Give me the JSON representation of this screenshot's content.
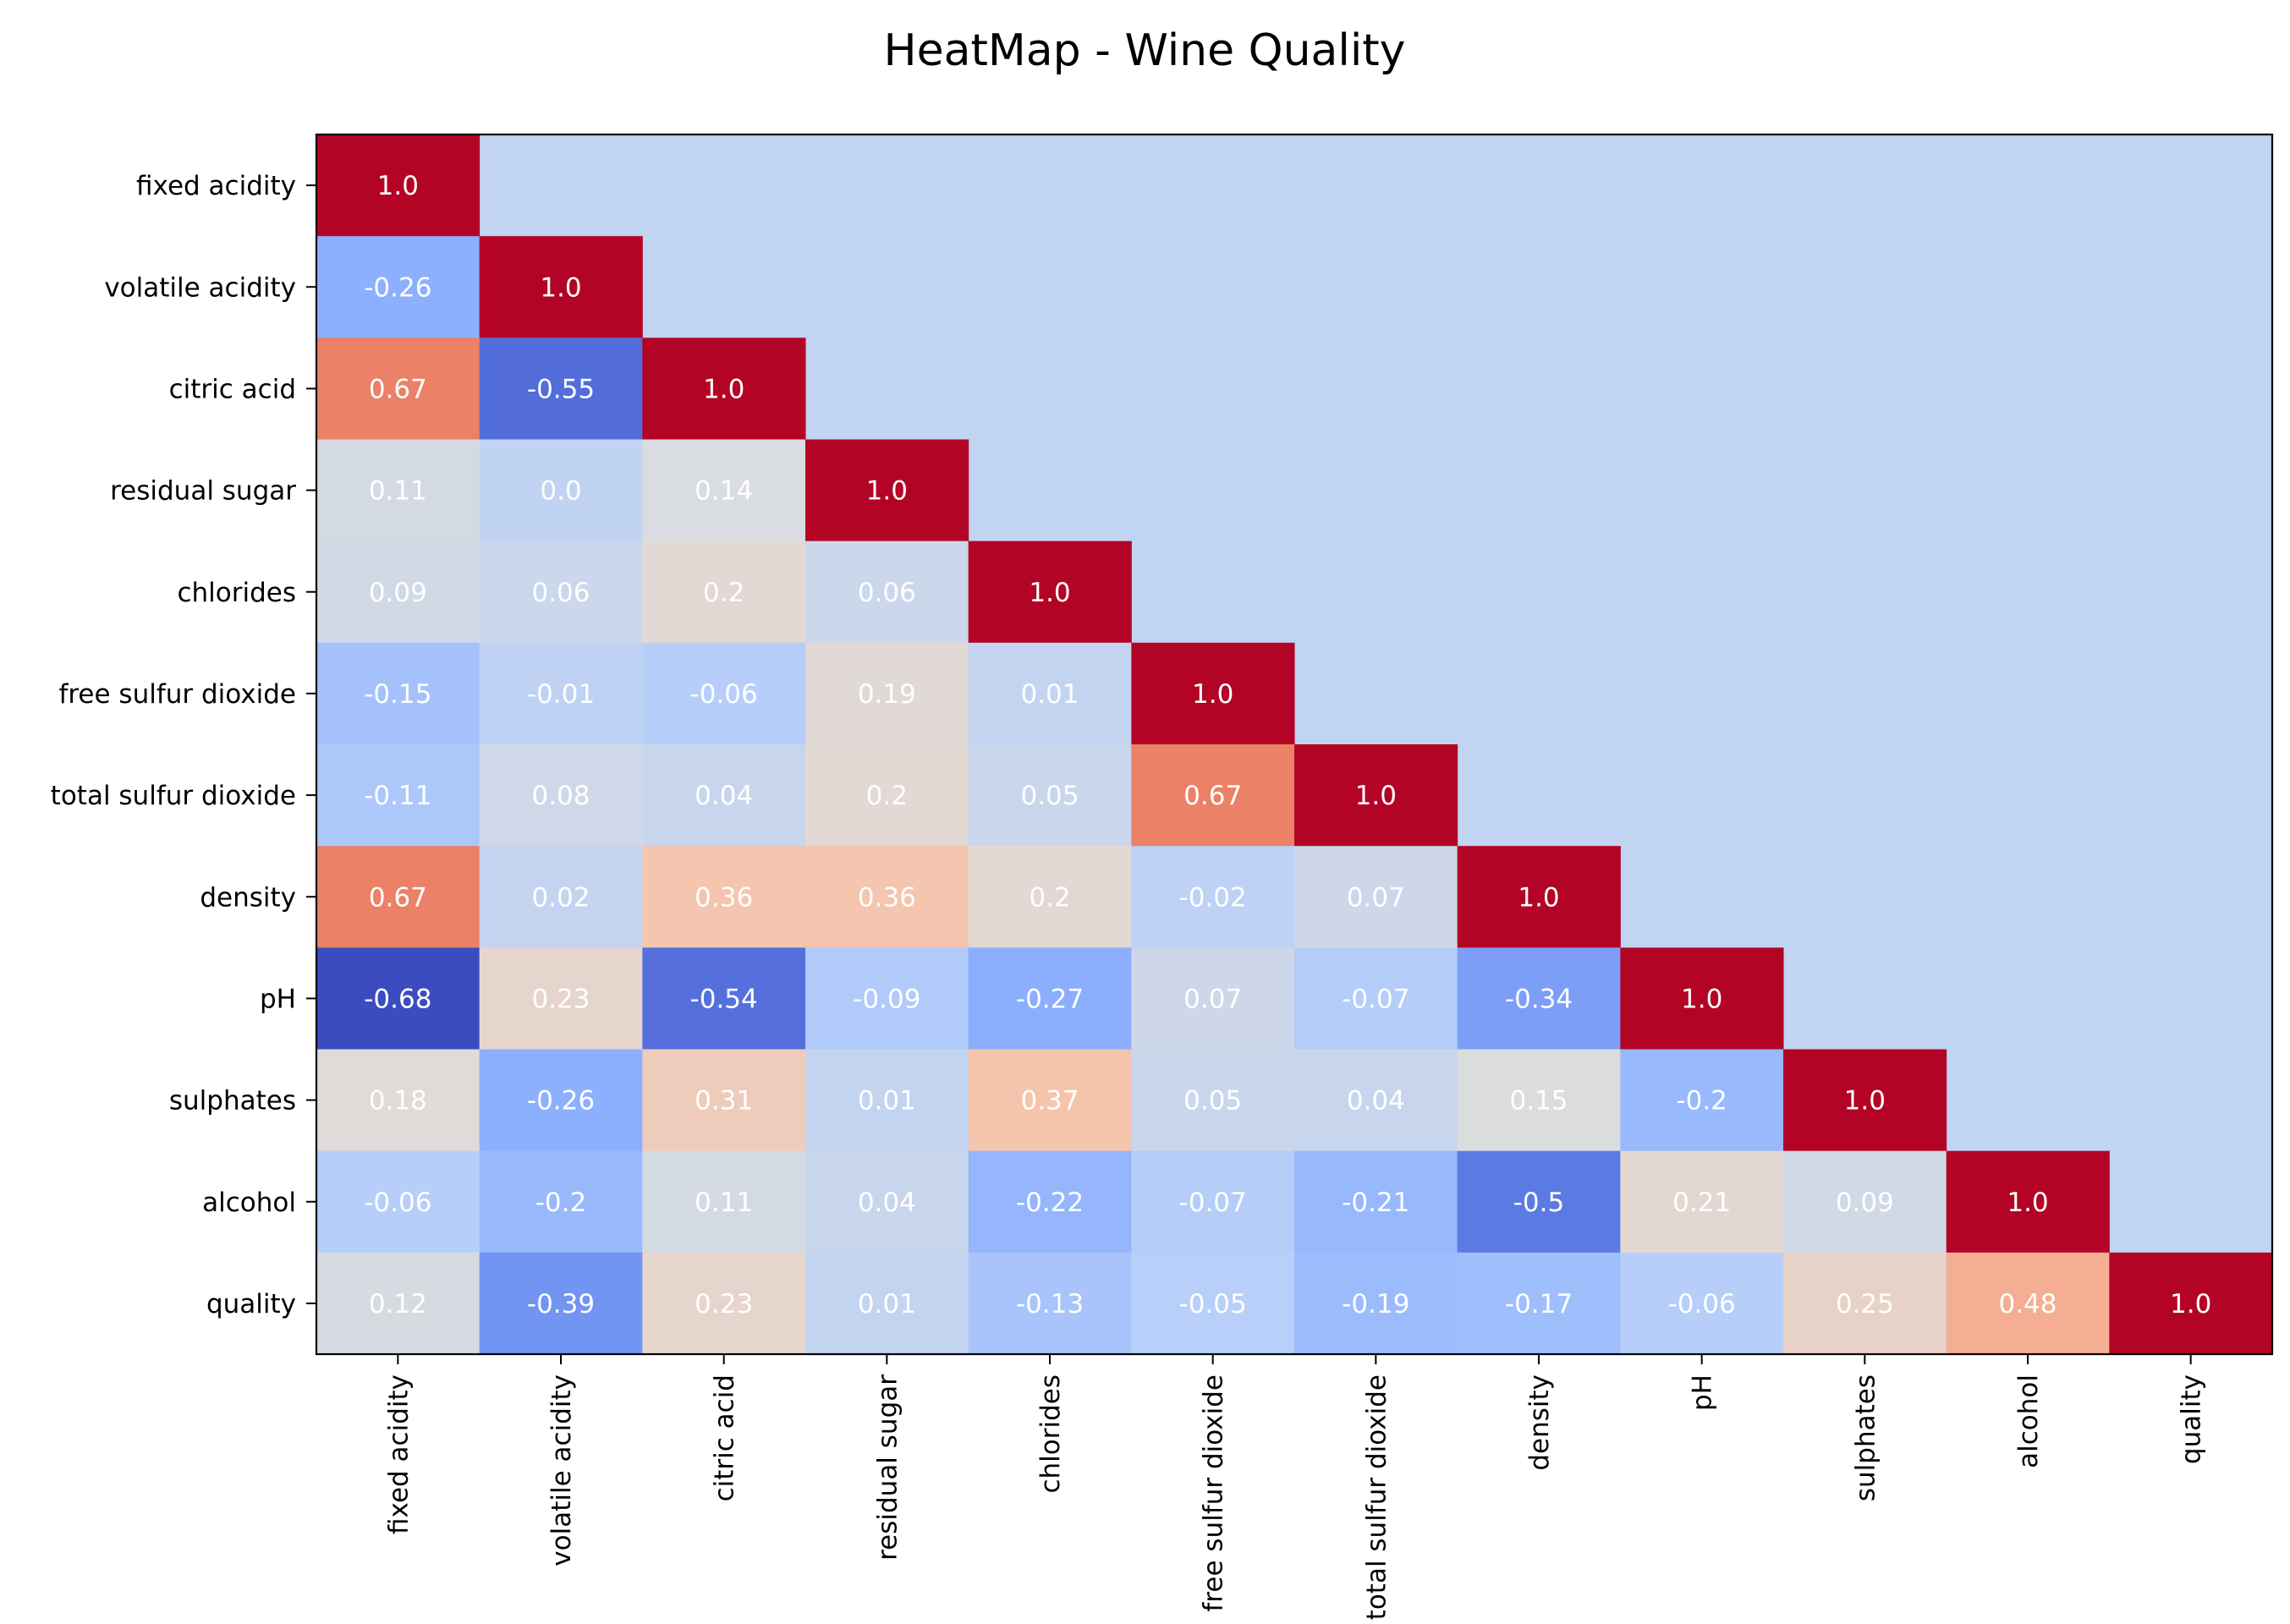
{
  "chart_data": {
    "type": "heatmap",
    "title": "HeatMap - Wine Quality",
    "xlabel": "",
    "ylabel": "",
    "colormap": "coolwarm",
    "value_range": [
      -0.68,
      1.0
    ],
    "masked_cell_color": "#c1d4f2",
    "show_colorbar": false,
    "mask": "upper triangle (above diagonal) hidden",
    "variables": [
      "fixed acidity",
      "volatile acidity",
      "citric acid",
      "residual sugar",
      "chlorides",
      "free sulfur dioxide",
      "total sulfur dioxide",
      "density",
      "pH",
      "sulphates",
      "alcohol",
      "quality"
    ],
    "rows": [
      {
        "label": "fixed acidity",
        "values": [
          "1.0"
        ]
      },
      {
        "label": "volatile acidity",
        "values": [
          "-0.26",
          "1.0"
        ]
      },
      {
        "label": "citric acid",
        "values": [
          "0.67",
          "-0.55",
          "1.0"
        ]
      },
      {
        "label": "residual sugar",
        "values": [
          "0.11",
          "0.0",
          "0.14",
          "1.0"
        ]
      },
      {
        "label": "chlorides",
        "values": [
          "0.09",
          "0.06",
          "0.2",
          "0.06",
          "1.0"
        ]
      },
      {
        "label": "free sulfur dioxide",
        "values": [
          "-0.15",
          "-0.01",
          "-0.06",
          "0.19",
          "0.01",
          "1.0"
        ]
      },
      {
        "label": "total sulfur dioxide",
        "values": [
          "-0.11",
          "0.08",
          "0.04",
          "0.2",
          "0.05",
          "0.67",
          "1.0"
        ]
      },
      {
        "label": "density",
        "values": [
          "0.67",
          "0.02",
          "0.36",
          "0.36",
          "0.2",
          "-0.02",
          "0.07",
          "1.0"
        ]
      },
      {
        "label": "pH",
        "values": [
          "-0.68",
          "0.23",
          "-0.54",
          "-0.09",
          "-0.27",
          "0.07",
          "-0.07",
          "-0.34",
          "1.0"
        ]
      },
      {
        "label": "sulphates",
        "values": [
          "0.18",
          "-0.26",
          "0.31",
          "0.01",
          "0.37",
          "0.05",
          "0.04",
          "0.15",
          "-0.2",
          "1.0"
        ]
      },
      {
        "label": "alcohol",
        "values": [
          "-0.06",
          "-0.2",
          "0.11",
          "0.04",
          "-0.22",
          "-0.07",
          "-0.21",
          "-0.5",
          "0.21",
          "0.09",
          "1.0"
        ]
      },
      {
        "label": "quality",
        "values": [
          "0.12",
          "-0.39",
          "0.23",
          "0.01",
          "-0.13",
          "-0.05",
          "-0.19",
          "-0.17",
          "-0.06",
          "0.25",
          "0.48",
          "1.0"
        ]
      }
    ]
  }
}
